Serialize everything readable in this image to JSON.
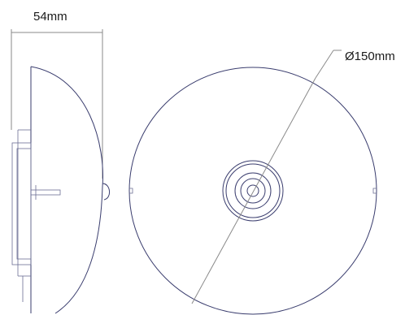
{
  "dimensions": {
    "depth_label": "54mm",
    "diameter_label": "Ø150mm"
  },
  "colors": {
    "outline": "#3a3d6e",
    "dimension_line": "#8a8a8a",
    "text": "#1a1a1a"
  }
}
